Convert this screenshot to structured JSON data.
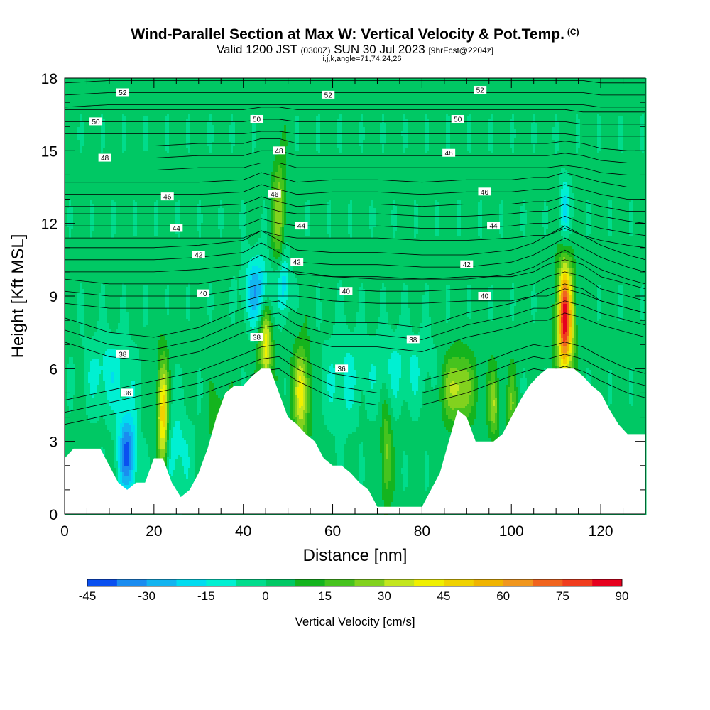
{
  "header": {
    "title_main": "Wind-Parallel Section at Max W: Vertical Velocity & Pot.Temp.",
    "title_c": "(C)",
    "valid_a": "Valid 1200 JST",
    "valid_b": "(0300Z)",
    "valid_c": "SUN 30 Jul 2023",
    "valid_d": "[9hrFcst@2204z]",
    "indices": "i,j,k,angle=71,74,24,26"
  },
  "chart_data": {
    "type": "heatmap",
    "xlabel": "Distance [nm]",
    "ylabel": "Height [Kft MSL]",
    "xlim": [
      0,
      130
    ],
    "ylim": [
      0,
      18
    ],
    "x_ticks": [
      0,
      20,
      40,
      60,
      80,
      100,
      120
    ],
    "y_ticks": [
      0,
      3,
      6,
      9,
      12,
      15,
      18
    ],
    "x_tick_labels": [
      "0",
      "20",
      "40",
      "60",
      "80",
      "100",
      "120"
    ],
    "y_tick_labels": [
      "0",
      "3",
      "6",
      "9",
      "12",
      "15",
      "18"
    ],
    "colorbar": {
      "label": "Vertical Velocity [cm/s]",
      "min": -45,
      "max": 90,
      "step": 7.5,
      "tick_labels": [
        "-45",
        "-30",
        "-15",
        "0",
        "15",
        "30",
        "45",
        "60",
        "75",
        "90"
      ],
      "colors": [
        "#0000f0",
        "#0a50f0",
        "#1a8cf0",
        "#12b4f0",
        "#00dcf0",
        "#00f0d2",
        "#00dc8c",
        "#00c864",
        "#14b41e",
        "#46c31e",
        "#82d21e",
        "#c3e61e",
        "#f0f000",
        "#f0d200",
        "#f0b400",
        "#f0961e",
        "#f0641e",
        "#f03c1e",
        "#e6001e",
        "#b4003c",
        "#8c0050",
        "#6e006e"
      ]
    },
    "terrain_kft": [
      [
        0,
        2.3
      ],
      [
        2,
        2.7
      ],
      [
        5,
        2.7
      ],
      [
        8,
        2.7
      ],
      [
        10,
        2.0
      ],
      [
        12,
        1.3
      ],
      [
        14,
        1.0
      ],
      [
        16,
        1.3
      ],
      [
        18,
        1.3
      ],
      [
        20,
        2.3
      ],
      [
        22,
        2.3
      ],
      [
        24,
        1.3
      ],
      [
        26,
        0.7
      ],
      [
        28,
        1.0
      ],
      [
        30,
        1.7
      ],
      [
        32,
        2.7
      ],
      [
        34,
        4.0
      ],
      [
        36,
        5.0
      ],
      [
        38,
        5.3
      ],
      [
        40,
        5.3
      ],
      [
        42,
        5.7
      ],
      [
        44,
        6.0
      ],
      [
        46,
        6.0
      ],
      [
        48,
        5.0
      ],
      [
        50,
        4.0
      ],
      [
        52,
        3.7
      ],
      [
        54,
        3.3
      ],
      [
        56,
        3.0
      ],
      [
        58,
        2.3
      ],
      [
        60,
        2.0
      ],
      [
        62,
        2.0
      ],
      [
        64,
        1.7
      ],
      [
        66,
        1.3
      ],
      [
        68,
        1.0
      ],
      [
        70,
        0.3
      ],
      [
        72,
        0.3
      ],
      [
        74,
        0.3
      ],
      [
        76,
        0.3
      ],
      [
        78,
        0.3
      ],
      [
        80,
        0.3
      ],
      [
        82,
        1.0
      ],
      [
        84,
        1.7
      ],
      [
        86,
        3.0
      ],
      [
        88,
        4.3
      ],
      [
        90,
        4.0
      ],
      [
        92,
        3.0
      ],
      [
        94,
        3.0
      ],
      [
        96,
        3.0
      ],
      [
        98,
        3.3
      ],
      [
        100,
        4.0
      ],
      [
        102,
        4.7
      ],
      [
        104,
        5.3
      ],
      [
        106,
        5.7
      ],
      [
        108,
        6.0
      ],
      [
        110,
        6.0
      ],
      [
        112,
        6.0
      ],
      [
        114,
        6.0
      ],
      [
        116,
        5.7
      ],
      [
        118,
        5.3
      ],
      [
        120,
        5.0
      ],
      [
        122,
        4.3
      ],
      [
        124,
        3.7
      ],
      [
        126,
        3.3
      ],
      [
        128,
        3.3
      ],
      [
        130,
        3.3
      ]
    ],
    "updrafts": [
      {
        "x": 112,
        "y": 8.0,
        "sx": 1.2,
        "sy": 1.6,
        "w": 84
      },
      {
        "x": 22,
        "y": 4.0,
        "sx": 0.8,
        "sy": 1.6,
        "w": 50
      },
      {
        "x": 53,
        "y": 5.0,
        "sx": 1.3,
        "sy": 1.3,
        "w": 38
      },
      {
        "x": 45,
        "y": 7.0,
        "sx": 1.0,
        "sy": 1.2,
        "w": 40
      },
      {
        "x": 88,
        "y": 5.2,
        "sx": 2.5,
        "sy": 1.0,
        "w": 32
      },
      {
        "x": 48,
        "y": 12.5,
        "sx": 1.0,
        "sy": 1.6,
        "w": 25
      },
      {
        "x": 96,
        "y": 4.5,
        "sx": 0.8,
        "sy": 1.0,
        "w": 25
      },
      {
        "x": 72,
        "y": 2.5,
        "sx": 0.8,
        "sy": 1.5,
        "w": 22
      },
      {
        "x": 35,
        "y": 3.5,
        "sx": 1.5,
        "sy": 1.0,
        "w": 18
      },
      {
        "x": 100,
        "y": 4.5,
        "sx": 0.8,
        "sy": 1.0,
        "w": 18
      }
    ],
    "downdrafts": [
      {
        "x": 14,
        "y": 2.5,
        "sx": 1.5,
        "sy": 1.2,
        "w": -42
      },
      {
        "x": 43,
        "y": 9.2,
        "sx": 2.0,
        "sy": 1.0,
        "w": -32
      },
      {
        "x": 49,
        "y": 9.5,
        "sx": 1.0,
        "sy": 1.0,
        "w": -25
      },
      {
        "x": 112,
        "y": 12.5,
        "sx": 1.0,
        "sy": 1.0,
        "w": -20
      },
      {
        "x": 10,
        "y": 5.8,
        "sx": 4.0,
        "sy": 1.2,
        "w": -15
      },
      {
        "x": 25,
        "y": 2.5,
        "sx": 2.5,
        "sy": 1.5,
        "w": -14
      },
      {
        "x": 75,
        "y": 6.0,
        "sx": 6.0,
        "sy": 1.2,
        "w": -12
      },
      {
        "x": 62,
        "y": 5.5,
        "sx": 3.0,
        "sy": 1.5,
        "w": -12
      }
    ],
    "theta_levels": [
      34,
      35,
      36,
      37,
      38,
      39,
      40,
      41,
      42,
      43,
      44,
      45,
      46,
      47,
      48,
      49,
      50,
      51,
      52,
      53
    ],
    "theta_kft": {
      "x": [
        0,
        10,
        20,
        30,
        40,
        44,
        48,
        52,
        60,
        70,
        80,
        90,
        100,
        105,
        108,
        112,
        116,
        120,
        126,
        130
      ],
      "36": [
        4.2,
        4.6,
        5.0,
        5.4,
        6.1,
        6.4,
        6.5,
        6.0,
        5.3,
        5.0,
        5.0,
        5.5,
        6.2,
        6.5,
        6.4,
        6.6,
        6.4,
        6.0,
        5.5,
        5.3
      ],
      "38": [
        7.6,
        7.0,
        6.8,
        7.2,
        8.0,
        8.2,
        8.3,
        7.8,
        7.4,
        7.4,
        7.2,
        7.8,
        8.2,
        8.5,
        8.5,
        8.8,
        8.6,
        8.3,
        8.0,
        7.8
      ],
      "40": [
        9.2,
        9.0,
        9.0,
        9.0,
        9.3,
        9.5,
        9.5,
        9.5,
        9.3,
        9.2,
        9.2,
        9.3,
        9.3,
        9.5,
        9.8,
        10.0,
        9.8,
        9.3,
        9.0,
        8.8
      ],
      "42": [
        10.5,
        10.5,
        10.5,
        10.6,
        10.8,
        11.2,
        10.8,
        10.4,
        10.3,
        10.3,
        10.2,
        10.2,
        10.4,
        10.7,
        11.0,
        11.4,
        11.0,
        10.6,
        10.2,
        10.0
      ],
      "44": [
        11.9,
        11.9,
        11.9,
        11.9,
        11.9,
        12.2,
        12.0,
        11.9,
        11.9,
        11.9,
        11.8,
        11.8,
        11.9,
        12.0,
        12.0,
        12.3,
        12.0,
        11.8,
        11.6,
        11.5
      ],
      "46": [
        13.2,
        13.2,
        13.2,
        13.2,
        13.3,
        13.6,
        13.4,
        13.2,
        13.3,
        13.3,
        13.2,
        13.3,
        13.3,
        13.4,
        13.4,
        13.6,
        13.4,
        13.2,
        13.0,
        13.0
      ],
      "48": [
        14.7,
        14.7,
        14.7,
        14.8,
        14.8,
        15.0,
        15.0,
        14.8,
        14.8,
        14.8,
        14.8,
        14.8,
        14.8,
        14.8,
        14.8,
        14.9,
        14.8,
        14.6,
        14.5,
        14.5
      ],
      "50": [
        16.2,
        16.2,
        16.2,
        16.2,
        16.2,
        16.3,
        16.3,
        16.2,
        16.2,
        16.2,
        16.2,
        16.2,
        16.2,
        16.2,
        16.2,
        16.2,
        16.1,
        16.1,
        16.1,
        16.1
      ],
      "52": [
        17.3,
        17.4,
        17.4,
        17.4,
        17.4,
        17.4,
        17.4,
        17.4,
        17.4,
        17.4,
        17.4,
        17.4,
        17.4,
        17.4,
        17.4,
        17.4,
        17.4,
        17.3,
        17.3,
        17.3
      ]
    },
    "contour_labels": [
      {
        "x": 13,
        "y": 17.4,
        "text": "52"
      },
      {
        "x": 59,
        "y": 17.3,
        "text": "52"
      },
      {
        "x": 93,
        "y": 17.5,
        "text": "52"
      },
      {
        "x": 7,
        "y": 16.2,
        "text": "50"
      },
      {
        "x": 43,
        "y": 16.3,
        "text": "50"
      },
      {
        "x": 88,
        "y": 16.3,
        "text": "50"
      },
      {
        "x": 9,
        "y": 14.7,
        "text": "48"
      },
      {
        "x": 48,
        "y": 15.0,
        "text": "48"
      },
      {
        "x": 86,
        "y": 14.9,
        "text": "48"
      },
      {
        "x": 23,
        "y": 13.1,
        "text": "46"
      },
      {
        "x": 47,
        "y": 13.2,
        "text": "46"
      },
      {
        "x": 94,
        "y": 13.3,
        "text": "46"
      },
      {
        "x": 25,
        "y": 11.8,
        "text": "44"
      },
      {
        "x": 53,
        "y": 11.9,
        "text": "44"
      },
      {
        "x": 96,
        "y": 11.9,
        "text": "44"
      },
      {
        "x": 30,
        "y": 10.7,
        "text": "42"
      },
      {
        "x": 52,
        "y": 10.4,
        "text": "42"
      },
      {
        "x": 90,
        "y": 10.3,
        "text": "42"
      },
      {
        "x": 31,
        "y": 9.1,
        "text": "40"
      },
      {
        "x": 63,
        "y": 9.2,
        "text": "40"
      },
      {
        "x": 94,
        "y": 9.0,
        "text": "40"
      },
      {
        "x": 13,
        "y": 6.6,
        "text": "38"
      },
      {
        "x": 43,
        "y": 7.3,
        "text": "38"
      },
      {
        "x": 78,
        "y": 7.2,
        "text": "38"
      },
      {
        "x": 14,
        "y": 5.0,
        "text": "36"
      },
      {
        "x": 62,
        "y": 6.0,
        "text": "36"
      }
    ]
  }
}
